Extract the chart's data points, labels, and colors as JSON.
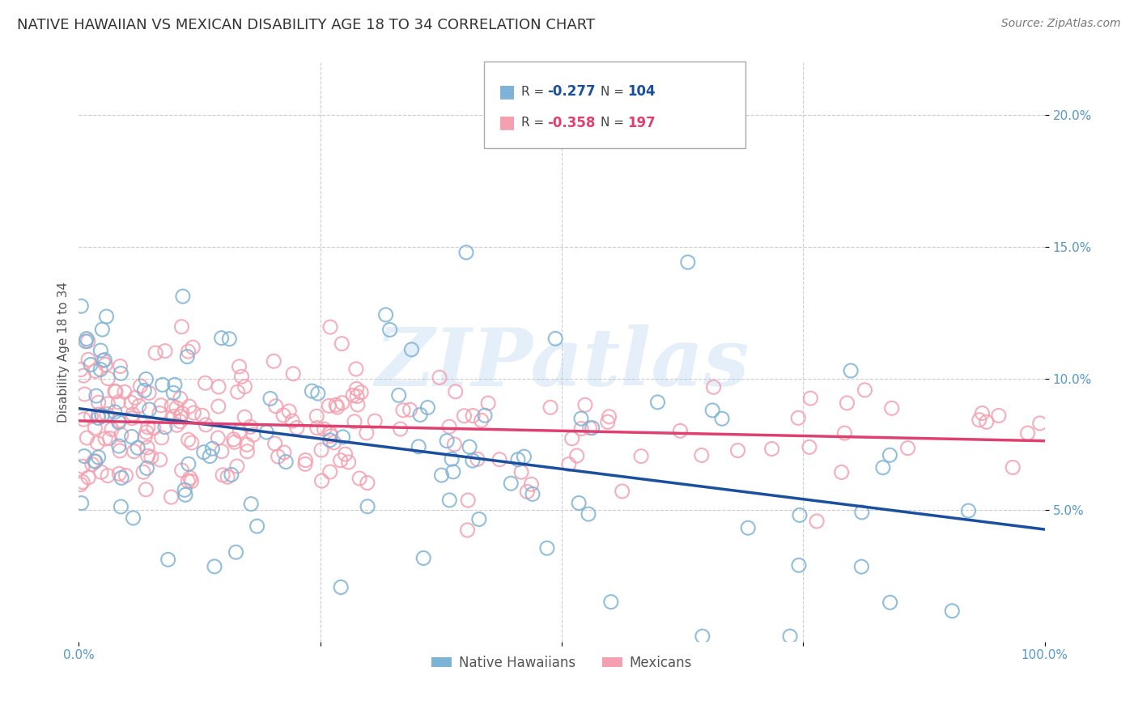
{
  "title": "NATIVE HAWAIIAN VS MEXICAN DISABILITY AGE 18 TO 34 CORRELATION CHART",
  "source": "Source: ZipAtlas.com",
  "ylabel": "Disability Age 18 to 34",
  "xlim": [
    0,
    100
  ],
  "ylim": [
    0,
    22
  ],
  "yticks": [
    5,
    10,
    15,
    20
  ],
  "ytick_labels": [
    "5.0%",
    "10.0%",
    "15.0%",
    "20.0%"
  ],
  "color_hawaiian": "#7EB3D8",
  "color_mexican": "#F4A0B0",
  "trendline_color_hawaiian": "#1A4FA0",
  "trendline_color_mexican": "#E04070",
  "watermark": "ZIPatlas",
  "grid_color": "#CCCCCC",
  "title_fontsize": 13,
  "label_fontsize": 11,
  "tick_fontsize": 11,
  "source_fontsize": 10,
  "n_hawaiian": 104,
  "n_mexican": 197,
  "seed": 42,
  "tick_color": "#5599CC",
  "ylabel_color": "#555555"
}
